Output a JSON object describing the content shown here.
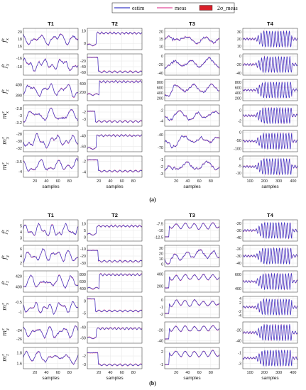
{
  "legend": [
    {
      "label": "estim",
      "color": "#3b3bc8",
      "kind": "line"
    },
    {
      "label": "meas",
      "color": "#e24a9a",
      "kind": "line"
    },
    {
      "label": "2σ_meas",
      "color": "#d8202a",
      "kind": "patch"
    }
  ],
  "colors": {
    "estim": "#3b3bc8",
    "meas": "#e24a9a",
    "band": "#d8202a",
    "grid": "#e6e6e6"
  },
  "figures": [
    {
      "caption": "(a)",
      "columns": [
        "T1",
        "T2",
        "T3",
        "T4"
      ],
      "xlabel": "samples",
      "row_labels": [
        "f_x^z",
        "f_y^z",
        "f_z^z",
        "m_x^z",
        "m_y^z",
        "m_z^z"
      ],
      "x_ticks": [
        [
          20,
          40,
          60,
          80
        ],
        [
          20,
          40,
          60,
          80
        ],
        [
          20,
          40,
          60,
          80
        ],
        [
          100,
          200,
          300,
          400
        ]
      ],
      "y_ticks": [
        [
          [
            16,
            18,
            20
          ],
          [
            0,
            10
          ],
          [
            10,
            15,
            20
          ],
          [
            10,
            20,
            30
          ]
        ],
        [
          [
            -16,
            -18
          ],
          [
            -20,
            -40,
            -60
          ],
          [
            0,
            -20,
            -40
          ],
          [
            0,
            -20,
            -40
          ]
        ],
        [
          [
            390,
            400
          ],
          [
            200,
            400
          ],
          [
            200,
            400,
            600,
            800
          ],
          [
            200,
            400,
            600,
            800
          ]
        ],
        [
          [
            -2.8,
            -3,
            -3.2
          ],
          [
            -2,
            -3
          ],
          [
            -2,
            -4
          ],
          [
            0,
            -2
          ]
        ],
        [
          [
            -28,
            -30,
            -32
          ],
          [
            -40,
            -60
          ],
          [
            -40,
            -70
          ],
          [
            0,
            -50,
            -100
          ]
        ],
        [
          [
            -3.5,
            -4
          ],
          [
            -2,
            -4
          ],
          [
            -1,
            -2,
            -3
          ],
          [
            0,
            -5,
            -10
          ]
        ]
      ]
    },
    {
      "caption": "(b)",
      "columns": [
        "T1",
        "T2",
        "T3",
        "T4"
      ],
      "xlabel": "samples",
      "row_labels": [
        "f_x^z",
        "f_y^z",
        "f_z^z",
        "m_x^z",
        "m_y^z",
        "m_z^z"
      ],
      "x_ticks": [
        [
          20,
          40,
          60,
          80
        ],
        [
          20,
          40,
          60,
          80
        ],
        [
          20,
          40,
          60,
          80
        ],
        [
          100,
          200,
          300,
          400
        ]
      ],
      "y_ticks": [
        [
          [
            3,
            4,
            5
          ],
          [
            0,
            5,
            10
          ],
          [
            -7.5,
            -10,
            -12.5
          ],
          [
            -20,
            -30,
            -40
          ]
        ],
        [
          [
            2,
            4,
            6
          ],
          [
            -10,
            -20,
            -30
          ],
          [
            0,
            10,
            20,
            30
          ],
          [
            -20,
            -30,
            -40
          ]
        ],
        [
          [
            400,
            420
          ],
          [
            400,
            600,
            800
          ],
          [
            200,
            400
          ],
          [
            400,
            600
          ]
        ],
        [
          [
            -0.5,
            -1
          ],
          [
            0,
            -5
          ],
          [
            0,
            -1,
            -2
          ],
          [
            4,
            2,
            -2,
            -4
          ]
        ],
        [
          [
            -24,
            -26
          ],
          [
            -40,
            -60
          ],
          [
            -20,
            -40
          ],
          [
            -20,
            -40
          ]
        ],
        [
          [
            1.6,
            1.8
          ],
          [
            -2,
            -3
          ],
          [
            2,
            -1
          ],
          [
            -1,
            -3
          ]
        ]
      ]
    }
  ],
  "chart_data": [
    {
      "type": "line",
      "title": "",
      "xlabel": "samples",
      "columns": [
        "T1",
        "T2",
        "T3",
        "T4"
      ],
      "rows": [
        "f_x^z",
        "f_y^z",
        "f_z^z",
        "m_x^z",
        "m_y^z",
        "m_z^z"
      ],
      "series": [
        {
          "name": "estim"
        },
        {
          "name": "meas"
        },
        {
          "name": "2σ_meas"
        }
      ],
      "xlim": [
        [
          0,
          95
        ],
        [
          0,
          95
        ],
        [
          0,
          95
        ],
        [
          50,
          430
        ]
      ],
      "ylim": [
        [
          [
            15,
            21
          ],
          [
            -5,
            12
          ],
          [
            8,
            22
          ],
          [
            5,
            35
          ]
        ],
        [
          [
            -20,
            -15
          ],
          [
            -70,
            5
          ],
          [
            -45,
            5
          ],
          [
            -45,
            5
          ]
        ],
        [
          [
            385,
            405
          ],
          [
            0,
            500
          ],
          [
            100,
            900
          ],
          [
            100,
            900
          ]
        ],
        [
          [
            -3.3,
            -2.7
          ],
          [
            -4,
            -1
          ],
          [
            -5,
            -1
          ],
          [
            -3,
            1
          ]
        ],
        [
          [
            -33,
            -27
          ],
          [
            -70,
            -30
          ],
          [
            -80,
            -30
          ],
          [
            -120,
            10
          ]
        ],
        [
          [
            -4.3,
            -3.2
          ],
          [
            -5,
            -1
          ],
          [
            -3.5,
            -0.5
          ],
          [
            -13,
            2
          ]
        ]
      ]
    },
    {
      "type": "line",
      "title": "",
      "xlabel": "samples",
      "columns": [
        "T1",
        "T2",
        "T3",
        "T4"
      ],
      "rows": [
        "f_x^z",
        "f_y^z",
        "f_z^z",
        "m_x^z",
        "m_y^z",
        "m_z^z"
      ],
      "series": [
        {
          "name": "estim"
        },
        {
          "name": "meas"
        },
        {
          "name": "2σ_meas"
        }
      ],
      "xlim": [
        [
          0,
          95
        ],
        [
          0,
          95
        ],
        [
          0,
          95
        ],
        [
          50,
          430
        ]
      ],
      "ylim": [
        [
          [
            2.5,
            6
          ],
          [
            -3,
            13
          ],
          [
            -14,
            -6
          ],
          [
            -45,
            -15
          ]
        ],
        [
          [
            1,
            7
          ],
          [
            -35,
            -5
          ],
          [
            -5,
            35
          ],
          [
            -45,
            -15
          ]
        ],
        [
          [
            390,
            430
          ],
          [
            300,
            900
          ],
          [
            100,
            450
          ],
          [
            350,
            650
          ]
        ],
        [
          [
            -1.3,
            -0.2
          ],
          [
            -7,
            2
          ],
          [
            -2.5,
            0.5
          ],
          [
            -5,
            5
          ]
        ],
        [
          [
            -27,
            -22
          ],
          [
            -70,
            -30
          ],
          [
            -45,
            -5
          ],
          [
            -45,
            -5
          ]
        ],
        [
          [
            1.5,
            1.9
          ],
          [
            -3.5,
            -1
          ],
          [
            -2,
            3
          ],
          [
            -4,
            0
          ]
        ]
      ]
    }
  ]
}
